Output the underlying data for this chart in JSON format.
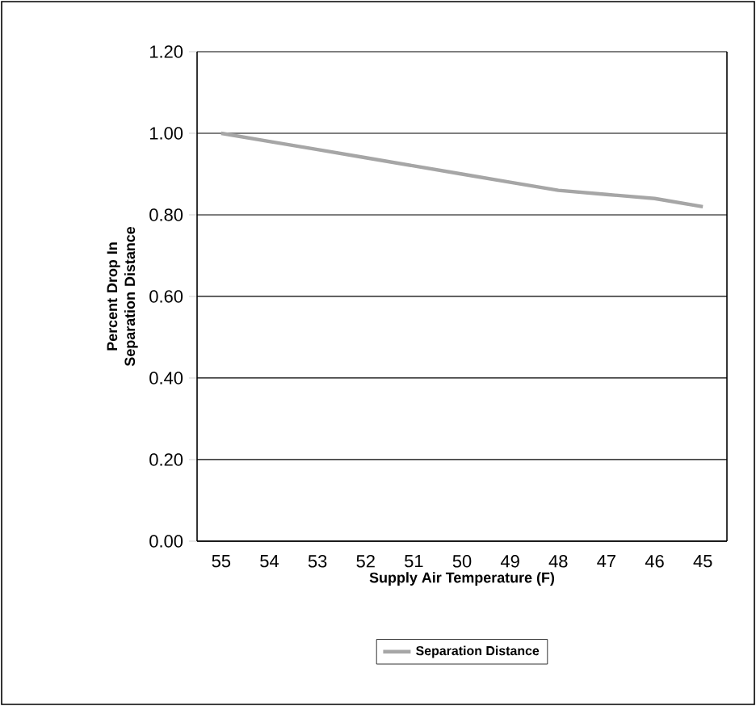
{
  "chart_data": {
    "type": "line",
    "xlabel": "Supply Air Temperature (F)",
    "ylabel": "Percent Drop In Separation Distance",
    "categories": [
      "55",
      "54",
      "53",
      "52",
      "51",
      "50",
      "49",
      "48",
      "47",
      "46",
      "45"
    ],
    "series": [
      {
        "name": "Separation Distance",
        "color": "#a6a6a6",
        "values": [
          1.0,
          0.98,
          0.96,
          0.94,
          0.92,
          0.9,
          0.88,
          0.86,
          0.85,
          0.84,
          0.82
        ]
      }
    ],
    "ylim": [
      0,
      1.2
    ],
    "yticks": [
      {
        "value": 0,
        "label": "0.00"
      },
      {
        "value": 0.2,
        "label": "0.20"
      },
      {
        "value": 0.4,
        "label": "0.40"
      },
      {
        "value": 0.6,
        "label": "0.60"
      },
      {
        "value": 0.8,
        "label": "0.80"
      },
      {
        "value": 1.0,
        "label": "1.00"
      },
      {
        "value": 1.2,
        "label": "1.20"
      }
    ],
    "grid": "y",
    "legend": "bottom",
    "marker": "none",
    "line_style": "solid"
  }
}
